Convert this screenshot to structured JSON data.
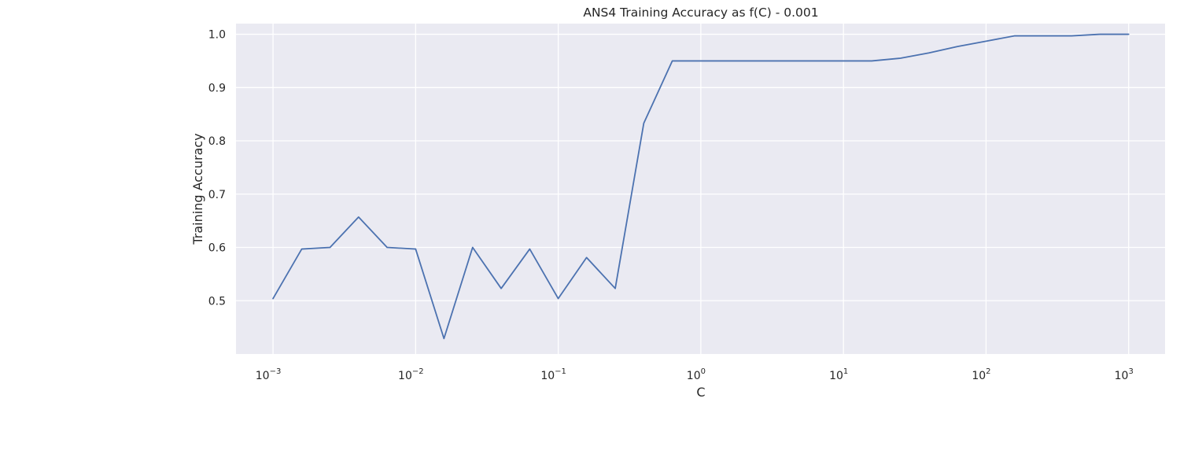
{
  "chart_data": {
    "type": "line",
    "title": "ANS4 Training Accuracy as f(C) - 0.001",
    "xlabel": "C",
    "ylabel": "Training Accuracy",
    "xscale": "log",
    "xlim": [
      0.00055,
      1800
    ],
    "ylim": [
      0.4,
      1.02
    ],
    "x_ticks": [
      {
        "value": 0.001,
        "base": "10",
        "exp": "−3"
      },
      {
        "value": 0.01,
        "base": "10",
        "exp": "−2"
      },
      {
        "value": 0.1,
        "base": "10",
        "exp": "−1"
      },
      {
        "value": 1,
        "base": "10",
        "exp": "0"
      },
      {
        "value": 10,
        "base": "10",
        "exp": "1"
      },
      {
        "value": 100,
        "base": "10",
        "exp": "2"
      },
      {
        "value": 1000,
        "base": "10",
        "exp": "3"
      }
    ],
    "y_ticks": [
      {
        "value": 0.5,
        "label": "0.5"
      },
      {
        "value": 0.6,
        "label": "0.6"
      },
      {
        "value": 0.7,
        "label": "0.7"
      },
      {
        "value": 0.8,
        "label": "0.8"
      },
      {
        "value": 0.9,
        "label": "0.9"
      },
      {
        "value": 1.0,
        "label": "1.0"
      }
    ],
    "grid": true,
    "colors": {
      "background": "#eaeaf2",
      "grid": "#ffffff",
      "line": "#4c72b0"
    },
    "series": [
      {
        "x": [
          0.001,
          0.00159,
          0.00251,
          0.00398,
          0.00631,
          0.01,
          0.0158,
          0.0251,
          0.0398,
          0.0631,
          0.1,
          0.158,
          0.251,
          0.398,
          0.631,
          1,
          1.58,
          2.51,
          3.98,
          6.31,
          10,
          15.8,
          25.1,
          39.8,
          63.1,
          100,
          158,
          251,
          398,
          631,
          1000
        ],
        "y": [
          0.504,
          0.597,
          0.6,
          0.657,
          0.6,
          0.597,
          0.429,
          0.6,
          0.523,
          0.597,
          0.504,
          0.581,
          0.523,
          0.833,
          0.95,
          0.95,
          0.95,
          0.95,
          0.95,
          0.95,
          0.95,
          0.95,
          0.955,
          0.965,
          0.977,
          0.987,
          0.997,
          0.997,
          0.997,
          1.0,
          1.0
        ]
      }
    ]
  }
}
